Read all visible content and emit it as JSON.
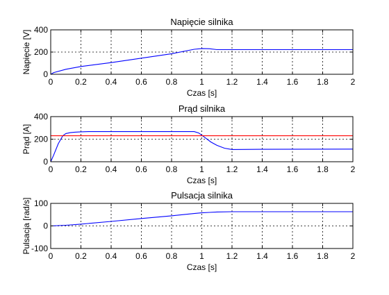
{
  "chart_data": [
    {
      "type": "line",
      "title": "Napięcie silnika",
      "xlabel": "Czas [s]",
      "ylabel": "Napięcie [V]",
      "xlim": [
        0,
        2
      ],
      "ylim": [
        0,
        400
      ],
      "xticks": [
        "0",
        "0.2",
        "0.4",
        "0.6",
        "0.8",
        "1",
        "1.2",
        "1.4",
        "1.6",
        "1.8",
        "2"
      ],
      "yticks": [
        "0",
        "200",
        "400"
      ],
      "grid": true,
      "series": [
        {
          "color": "#0000ff",
          "x": [
            0,
            0.02,
            0.1,
            0.2,
            0.4,
            0.6,
            0.8,
            0.95,
            1.0,
            1.05,
            1.1,
            1.5,
            2.0
          ],
          "y": [
            0,
            15,
            45,
            70,
            105,
            145,
            185,
            225,
            232,
            230,
            222,
            222,
            222
          ]
        }
      ]
    },
    {
      "type": "line",
      "title": "Prąd silnika",
      "xlabel": "Czas [s]",
      "ylabel": "Prąd [A]",
      "xlim": [
        0,
        2
      ],
      "ylim": [
        0,
        400
      ],
      "xticks": [
        "0",
        "0.2",
        "0.4",
        "0.6",
        "0.8",
        "1",
        "1.2",
        "1.4",
        "1.6",
        "1.8",
        "2"
      ],
      "yticks": [
        "0",
        "200",
        "400"
      ],
      "grid": true,
      "series": [
        {
          "color": "#0000ff",
          "x": [
            0,
            0.02,
            0.05,
            0.08,
            0.1,
            0.13,
            0.16,
            0.2,
            0.25,
            0.5,
            0.95,
            0.98,
            1.02,
            1.06,
            1.1,
            1.15,
            1.2,
            1.4,
            2.0
          ],
          "y": [
            0,
            60,
            160,
            230,
            250,
            258,
            262,
            265,
            267,
            267,
            267,
            255,
            215,
            175,
            145,
            120,
            108,
            110,
            112
          ]
        },
        {
          "color": "#ff0000",
          "x": [
            0,
            2
          ],
          "y": [
            230,
            230
          ]
        }
      ]
    },
    {
      "type": "line",
      "title": "Pulsacja silnika",
      "xlabel": "Czas [s]",
      "ylabel": "Pulsacja [rad/s]",
      "xlim": [
        0,
        2
      ],
      "ylim": [
        -100,
        100
      ],
      "xticks": [
        "0",
        "0.2",
        "0.4",
        "0.6",
        "0.8",
        "1",
        "1.2",
        "1.4",
        "1.6",
        "1.8",
        "2"
      ],
      "yticks": [
        "-100",
        "0",
        "100"
      ],
      "grid": true,
      "series": [
        {
          "color": "#0000ff",
          "x": [
            0,
            0.1,
            0.2,
            0.4,
            0.6,
            0.8,
            0.95,
            1.0,
            1.05,
            1.1,
            1.2,
            1.5,
            2.0
          ],
          "y": [
            0,
            3,
            8,
            20,
            33,
            45,
            55,
            58,
            60,
            62,
            63,
            63,
            63
          ]
        }
      ]
    }
  ]
}
